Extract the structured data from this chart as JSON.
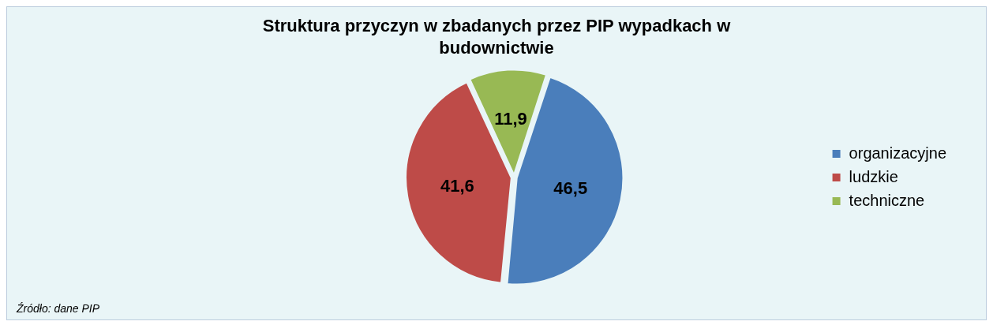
{
  "chart_data": {
    "type": "pie",
    "title": "Struktura przyczyn w zbadanych przez PIP wypadkach w budownictwie",
    "categories": [
      "organizacyjne",
      "ludzkie",
      "techniczne"
    ],
    "values": [
      46.5,
      41.6,
      11.9
    ],
    "colors": [
      "#4a7ebb",
      "#be4b48",
      "#98b954"
    ],
    "value_labels": [
      "46,5",
      "41,6",
      "11,9"
    ],
    "legend": "right",
    "annotations": [
      "Źródło: dane PIP"
    ]
  }
}
